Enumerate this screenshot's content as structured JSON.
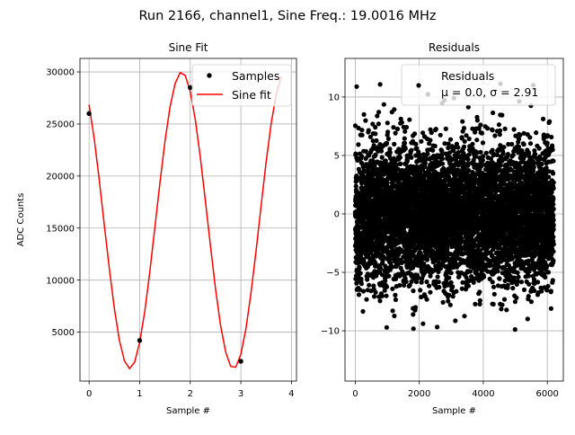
{
  "chart_data": [
    {
      "type": "line",
      "suptitle": "Run 2166, channel1, Sine Freq.: 19.0016 MHz",
      "title": "Sine Fit",
      "xlabel": "Sample #",
      "ylabel": "ADC Counts",
      "xlim": [
        -0.18,
        4.1
      ],
      "ylim": [
        300,
        31300
      ],
      "xticks": [
        0,
        1,
        2,
        3,
        4
      ],
      "yticks": [
        5000,
        10000,
        15000,
        20000,
        25000,
        30000
      ],
      "grid": true,
      "legend": {
        "placement": "top-right",
        "entries": [
          "Samples",
          "Sine fit"
        ]
      },
      "samples": {
        "name": "Samples",
        "x": [
          0,
          1,
          2,
          3
        ],
        "y": [
          26000,
          4200,
          28500,
          2200
        ],
        "color": "#000000"
      },
      "fit": {
        "name": "Sine fit",
        "color": "#ff0000",
        "amplitude": 14250,
        "offset": 15750,
        "freq_per_sample": 0.4875,
        "peak_x": 1.83,
        "x_start": 0,
        "x_end": 3.8,
        "x_step": 0.1
      }
    },
    {
      "type": "scatter",
      "title": "Residuals",
      "xlabel": "Sample #",
      "xlim": [
        -320,
        6500
      ],
      "ylim": [
        -14.3,
        13.3
      ],
      "xticks": [
        0,
        2000,
        4000,
        6000
      ],
      "yticks": [
        -10,
        -5,
        0,
        5,
        10
      ],
      "grid": true,
      "legend": {
        "placement": "top-right",
        "line1": "Residuals",
        "line2": "μ = 0.0, σ = 2.91"
      },
      "series": {
        "name": "Residuals",
        "n_points": 6200,
        "mu": 0.0,
        "sigma": 2.91,
        "color": "#000000"
      }
    }
  ]
}
